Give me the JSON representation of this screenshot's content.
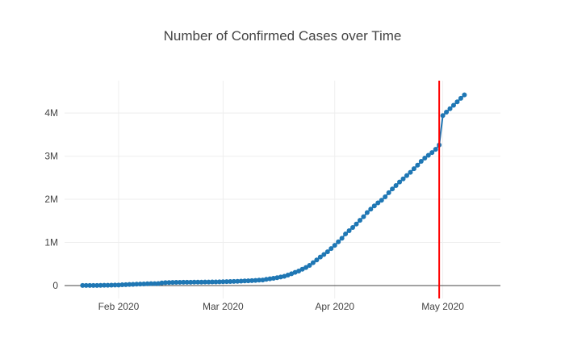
{
  "chart_data": {
    "type": "line",
    "title": "Number of Confirmed Cases over Time",
    "xlabel": "",
    "ylabel": "",
    "x_tick_labels": [
      "Feb 2020",
      "Mar 2020",
      "Apr 2020",
      "May 2020"
    ],
    "x_tick_dates": [
      "2020-02-01",
      "2020-03-01",
      "2020-04-01",
      "2020-05-01"
    ],
    "y_tick_labels": [
      "0",
      "1M",
      "2M",
      "3M",
      "4M"
    ],
    "y_tick_values": [
      0,
      1000000,
      2000000,
      3000000,
      4000000
    ],
    "xlim": [
      "2020-01-17",
      "2020-05-17"
    ],
    "ylim": [
      -300000,
      4750000
    ],
    "grid": true,
    "legend": "none",
    "colors": {
      "series": "#1f77b4",
      "marker_line": "#ff0000"
    },
    "vertical_marker_date": "2020-04-30",
    "series": [
      {
        "x": [
          "2020-01-22",
          "2020-01-23",
          "2020-01-24",
          "2020-01-25",
          "2020-01-26",
          "2020-01-27",
          "2020-01-28",
          "2020-01-29",
          "2020-01-30",
          "2020-01-31",
          "2020-02-01",
          "2020-02-02",
          "2020-02-03",
          "2020-02-04",
          "2020-02-05",
          "2020-02-06",
          "2020-02-07",
          "2020-02-08",
          "2020-02-09",
          "2020-02-10",
          "2020-02-11",
          "2020-02-12",
          "2020-02-13",
          "2020-02-14",
          "2020-02-15",
          "2020-02-16",
          "2020-02-17",
          "2020-02-18",
          "2020-02-19",
          "2020-02-20",
          "2020-02-21",
          "2020-02-22",
          "2020-02-23",
          "2020-02-24",
          "2020-02-25",
          "2020-02-26",
          "2020-02-27",
          "2020-02-28",
          "2020-02-29",
          "2020-03-01",
          "2020-03-02",
          "2020-03-03",
          "2020-03-04",
          "2020-03-05",
          "2020-03-06",
          "2020-03-07",
          "2020-03-08",
          "2020-03-09",
          "2020-03-10",
          "2020-03-11",
          "2020-03-12",
          "2020-03-13",
          "2020-03-14",
          "2020-03-15",
          "2020-03-16",
          "2020-03-17",
          "2020-03-18",
          "2020-03-19",
          "2020-03-20",
          "2020-03-21",
          "2020-03-22",
          "2020-03-23",
          "2020-03-24",
          "2020-03-25",
          "2020-03-26",
          "2020-03-27",
          "2020-03-28",
          "2020-03-29",
          "2020-03-30",
          "2020-03-31",
          "2020-04-01",
          "2020-04-02",
          "2020-04-03",
          "2020-04-04",
          "2020-04-05",
          "2020-04-06",
          "2020-04-07",
          "2020-04-08",
          "2020-04-09",
          "2020-04-10",
          "2020-04-11",
          "2020-04-12",
          "2020-04-13",
          "2020-04-14",
          "2020-04-15",
          "2020-04-16",
          "2020-04-17",
          "2020-04-18",
          "2020-04-19",
          "2020-04-20",
          "2020-04-21",
          "2020-04-22",
          "2020-04-23",
          "2020-04-24",
          "2020-04-25",
          "2020-04-26",
          "2020-04-27",
          "2020-04-28",
          "2020-04-29",
          "2020-04-30",
          "2020-05-01",
          "2020-05-02",
          "2020-05-03",
          "2020-05-04",
          "2020-05-05",
          "2020-05-06",
          "2020-05-07"
        ],
        "values": [
          555,
          654,
          941,
          1434,
          2118,
          2927,
          5578,
          6166,
          8234,
          9927,
          12038,
          16787,
          19881,
          23892,
          27635,
          30794,
          34391,
          37120,
          40150,
          42762,
          44802,
          45221,
          60368,
          66885,
          69030,
          71224,
          73258,
          75136,
          75639,
          76197,
          76819,
          78572,
          78958,
          79561,
          80406,
          81388,
          82746,
          84112,
          86011,
          88369,
          90306,
          92840,
          95120,
          97886,
          101801,
          105847,
          109821,
          113590,
          118620,
          125875,
          128352,
          145205,
          156101,
          167454,
          181574,
          197102,
          214821,
          242570,
          272208,
          304507,
          336953,
          378235,
          418045,
          467653,
          529591,
          593291,
          660706,
          720117,
          782365,
          857487,
          932605,
          1013157,
          1095917,
          1197405,
          1272115,
          1345101,
          1426096,
          1511104,
          1595350,
          1691719,
          1771514,
          1846679,
          1917320,
          1976191,
          2056054,
          2152437,
          2240191,
          2317759,
          2401378,
          2472259,
          2549123,
          2624762,
          2708485,
          2790986,
          2879511,
          2954222,
          3018952,
          3082486,
          3157192,
          3257660,
          3940000,
          4020000,
          4100000,
          4180000,
          4260000,
          4340000,
          4420000
        ]
      }
    ]
  }
}
